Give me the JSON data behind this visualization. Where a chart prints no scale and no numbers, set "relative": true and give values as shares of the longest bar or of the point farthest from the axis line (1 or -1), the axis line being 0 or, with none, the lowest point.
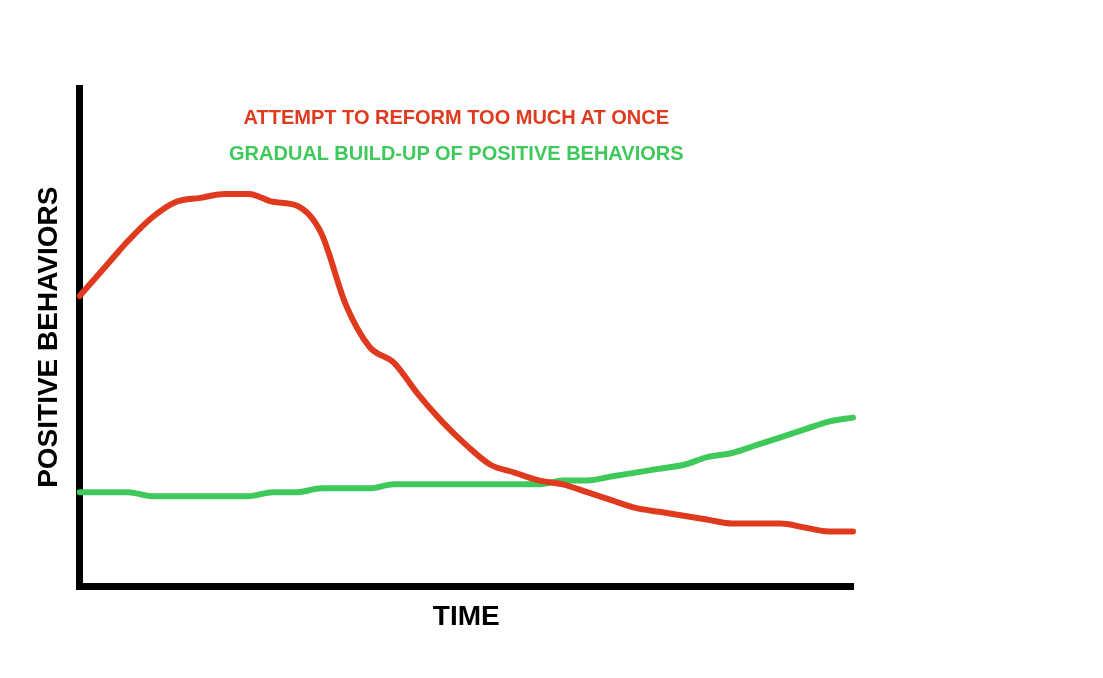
{
  "chart_data": {
    "type": "line",
    "relative": true,
    "xlabel": "TIME",
    "ylabel": "POSITIVE BEHAVIORS",
    "legend": "top",
    "grid": false,
    "marker": "none",
    "line_style": "solid",
    "categories": [
      null,
      null,
      null,
      null,
      null,
      null,
      null,
      null,
      null,
      null,
      null,
      null,
      null,
      null,
      null,
      null,
      null,
      null,
      null,
      null,
      null,
      null,
      null,
      null,
      null,
      null,
      null,
      null,
      null,
      null,
      null,
      null,
      null
    ],
    "series": [
      {
        "name": "ATTEMPT TO REFORM TOO MUCH AT ONCE",
        "color": "#e03a1e",
        "values": [
          0.74,
          0.81,
          0.88,
          0.94,
          0.98,
          0.99,
          1,
          1,
          0.98,
          0.97,
          0.9,
          0.72,
          0.61,
          0.57,
          0.49,
          0.42,
          0.36,
          0.31,
          0.29,
          0.27,
          0.26,
          0.24,
          0.22,
          0.2,
          0.19,
          0.18,
          0.17,
          0.16,
          0.16,
          0.16,
          0.15,
          0.14,
          0.14
        ]
      },
      {
        "name": "GRADUAL BUILD-UP OF POSITIVE BEHAVIORS",
        "color": "#3ec95a",
        "values": [
          0.24,
          0.24,
          0.24,
          0.23,
          0.23,
          0.23,
          0.23,
          0.23,
          0.24,
          0.24,
          0.25,
          0.25,
          0.25,
          0.26,
          0.26,
          0.26,
          0.26,
          0.26,
          0.26,
          0.26,
          0.27,
          0.27,
          0.28,
          0.29,
          0.3,
          0.31,
          0.33,
          0.34,
          0.36,
          0.38,
          0.4,
          0.42,
          0.43
        ]
      }
    ]
  }
}
